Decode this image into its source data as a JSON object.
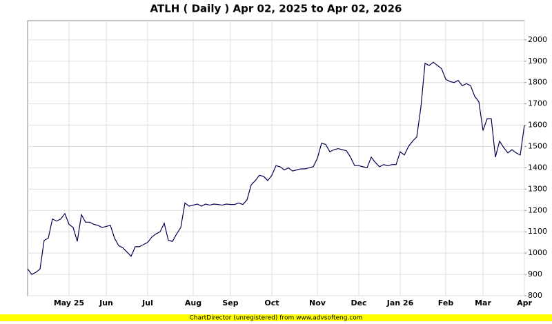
{
  "chart_data": {
    "type": "line",
    "title": "ATLH ( Daily ) Apr 02, 2025 to Apr 02, 2026",
    "categories": [
      null,
      null,
      null,
      null,
      null,
      null,
      null,
      null,
      null,
      null,
      "May 25",
      null,
      null,
      null,
      null,
      null,
      null,
      null,
      null,
      "Jun",
      null,
      null,
      null,
      null,
      null,
      null,
      null,
      null,
      null,
      "Jul",
      null,
      null,
      null,
      null,
      null,
      null,
      null,
      null,
      null,
      null,
      "Aug",
      null,
      null,
      null,
      null,
      null,
      null,
      null,
      null,
      "Sep",
      null,
      null,
      null,
      null,
      null,
      null,
      null,
      null,
      null,
      "Oct",
      null,
      null,
      null,
      null,
      null,
      null,
      null,
      null,
      null,
      null,
      "Nov",
      null,
      null,
      null,
      null,
      null,
      null,
      null,
      null,
      null,
      "Dec",
      null,
      null,
      null,
      null,
      null,
      null,
      null,
      null,
      null,
      "Jan 26",
      null,
      null,
      null,
      null,
      null,
      null,
      null,
      null,
      null,
      null,
      "Feb",
      null,
      null,
      null,
      null,
      null,
      null,
      null,
      null,
      "Mar",
      null,
      null,
      null,
      null,
      null,
      null,
      null,
      null,
      null,
      "Apr"
    ],
    "series": [
      {
        "color": "#000050",
        "values": [
          926,
          900,
          910,
          925,
          1060,
          1070,
          1160,
          1150,
          1160,
          1185,
          1135,
          1120,
          1055,
          1180,
          1145,
          1145,
          1135,
          1130,
          1120,
          1125,
          1130,
          1070,
          1035,
          1025,
          1005,
          985,
          1030,
          1030,
          1040,
          1050,
          1075,
          1090,
          1100,
          1140,
          1060,
          1055,
          1090,
          1120,
          1235,
          1220,
          1225,
          1230,
          1220,
          1230,
          1225,
          1230,
          1228,
          1225,
          1230,
          1228,
          1228,
          1235,
          1228,
          1250,
          1320,
          1340,
          1365,
          1360,
          1340,
          1365,
          1410,
          1405,
          1390,
          1400,
          1385,
          1390,
          1395,
          1395,
          1400,
          1405,
          1445,
          1515,
          1510,
          1475,
          1485,
          1490,
          1485,
          1480,
          1450,
          1410,
          1410,
          1405,
          1400,
          1450,
          1425,
          1405,
          1415,
          1410,
          1415,
          1415,
          1475,
          1460,
          1500,
          1525,
          1545,
          1685,
          1890,
          1880,
          1895,
          1880,
          1865,
          1815,
          1805,
          1800,
          1810,
          1785,
          1795,
          1785,
          1735,
          1710,
          1575,
          1630,
          1630,
          1450,
          1525,
          1495,
          1470,
          1485,
          1470,
          1460,
          1600
        ]
      }
    ],
    "ylim": [
      800,
      2090
    ],
    "yticks": [
      800,
      900,
      1000,
      1100,
      1200,
      1300,
      1400,
      1500,
      1600,
      1700,
      1800,
      1900,
      2000
    ],
    "grid": true
  },
  "footer": "ChartDirector (unregistered) from www.advsofteng.com"
}
